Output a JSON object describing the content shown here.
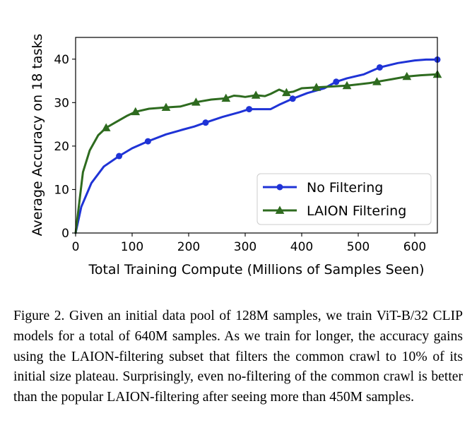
{
  "chart_data": {
    "type": "line",
    "title": "",
    "xlabel": "Total Training Compute (Millions of Samples Seen)",
    "ylabel": "Average Accuracy on 18 tasks",
    "xlim": [
      0,
      640
    ],
    "ylim": [
      0,
      45
    ],
    "xticks": [
      0,
      100,
      200,
      300,
      400,
      500,
      600
    ],
    "yticks": [
      0,
      10,
      20,
      30,
      40
    ],
    "grid": false,
    "legend_position": "lower-right",
    "series": [
      {
        "name": "No Filtering",
        "color": "#1f33d6",
        "marker": "circle",
        "marker_x": [
          77,
          128,
          230,
          307,
          384,
          461,
          538,
          640
        ],
        "x": [
          0,
          10,
          28,
          50,
          77,
          100,
          128,
          160,
          190,
          210,
          230,
          260,
          290,
          307,
          330,
          345,
          360,
          384,
          410,
          440,
          461,
          480,
          510,
          538,
          570,
          600,
          620,
          640
        ],
        "y": [
          0,
          6,
          11.5,
          15.3,
          17.7,
          19.5,
          21.1,
          22.7,
          23.8,
          24.5,
          25.4,
          26.7,
          27.8,
          28.5,
          28.5,
          28.5,
          29.5,
          30.9,
          32.2,
          33.3,
          34.8,
          35.6,
          36.5,
          38.1,
          39.1,
          39.7,
          39.9,
          39.9
        ]
      },
      {
        "name": "LAION Filtering",
        "color": "#2e6b1f",
        "marker": "triangle",
        "marker_x": [
          54,
          106,
          160,
          213,
          266,
          319,
          373,
          426,
          480,
          533,
          586,
          640
        ],
        "x": [
          0,
          13,
          25,
          40,
          54,
          70,
          90,
          106,
          130,
          160,
          185,
          213,
          240,
          266,
          280,
          290,
          300,
          319,
          335,
          345,
          360,
          373,
          385,
          400,
          426,
          450,
          480,
          500,
          520,
          533,
          560,
          586,
          610,
          640
        ],
        "y": [
          0,
          14,
          19,
          22.5,
          24.2,
          25.4,
          26.9,
          27.9,
          28.6,
          28.9,
          29.1,
          30.1,
          30.7,
          31,
          31.6,
          31.5,
          31.3,
          31.7,
          31.5,
          32,
          33,
          32.3,
          32.5,
          33.3,
          33.5,
          33.7,
          33.9,
          34.2,
          34.5,
          34.8,
          35.4,
          36,
          36.3,
          36.5
        ]
      }
    ]
  },
  "caption": {
    "text": "Figure 2.  Given an initial data pool of 128M samples, we train ViT-B/32 CLIP models for a total of 640M samples. As we train for longer, the accuracy gains using the LAION-filtering subset that filters the common crawl to 10% of its initial size plateau. Surprisingly, even no-filtering of the common crawl is better than the popular LAION-filtering after seeing more than 450M samples."
  }
}
